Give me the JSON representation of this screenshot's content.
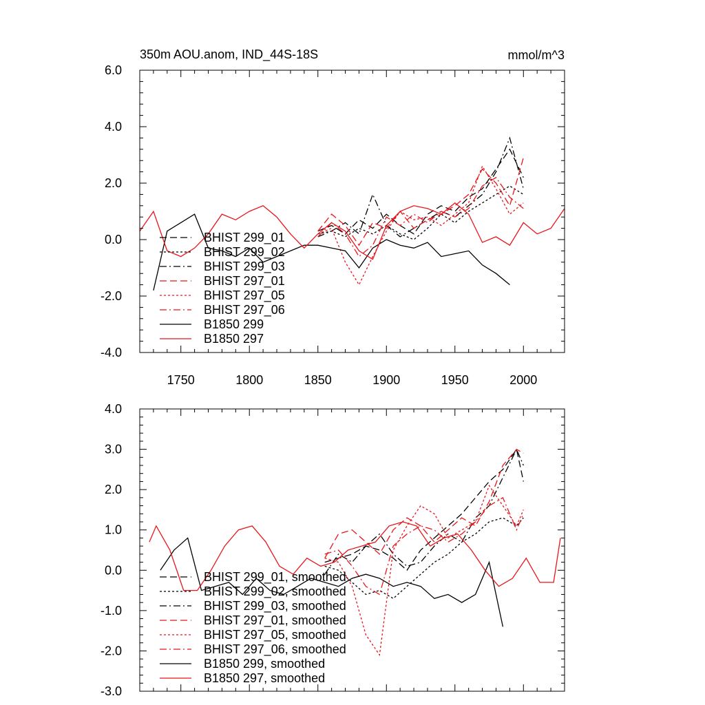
{
  "chart_data": [
    {
      "type": "line",
      "title": "350m AOU.anom, IND_44S-18S",
      "units": "mmol/m^3",
      "xlim": [
        1720,
        2030
      ],
      "ylim": [
        -4,
        6
      ],
      "xticks": [
        1750,
        1800,
        1850,
        1900,
        1950,
        2000
      ],
      "xtick_labels": [
        "1750",
        "1800",
        "1850",
        "1900",
        "1950",
        "2000"
      ],
      "yticks": [
        -4,
        -2,
        0,
        2,
        4,
        6
      ],
      "ytick_labels": [
        "-4.0",
        "-2.0",
        "0.0",
        "2.0",
        "4.0",
        "6.0"
      ],
      "legend": [
        "BHIST 299_01",
        "BHIST 299_02",
        "BHIST 299_03",
        "BHIST 297_01",
        "BHIST 297_05",
        "BHIST 297_06",
        "B1850 299",
        "B1850 297"
      ],
      "series": [
        {
          "name": "BHIST 299_01",
          "color": "#000000",
          "dash": "10,5",
          "x": [
            1850,
            1860,
            1870,
            1880,
            1890,
            1900,
            1910,
            1920,
            1930,
            1940,
            1950,
            1960,
            1970,
            1980,
            1990,
            2000
          ],
          "values": [
            0.3,
            0.5,
            0.2,
            0.7,
            0.4,
            0.9,
            0.5,
            0.2,
            0.9,
            1.2,
            1.0,
            1.5,
            1.8,
            2.5,
            3.2,
            2.2
          ]
        },
        {
          "name": "BHIST 299_02",
          "color": "#000000",
          "dash": "3,3",
          "x": [
            1850,
            1860,
            1870,
            1880,
            1890,
            1900,
            1910,
            1920,
            1930,
            1940,
            1950,
            1960,
            1970,
            1980,
            1990,
            2000
          ],
          "values": [
            0.2,
            0.3,
            0.1,
            0.4,
            0.2,
            0.5,
            0.2,
            0.0,
            0.4,
            0.9,
            0.6,
            1.0,
            1.3,
            1.6,
            1.9,
            1.6
          ]
        },
        {
          "name": "BHIST 299_03",
          "color": "#000000",
          "dash": "10,4,2,4",
          "x": [
            1850,
            1860,
            1870,
            1880,
            1890,
            1900,
            1910,
            1920,
            1930,
            1940,
            1950,
            1960,
            1970,
            1980,
            1990,
            2000
          ],
          "values": [
            0.1,
            0.3,
            0.6,
            0.2,
            1.6,
            0.5,
            0.1,
            0.4,
            0.7,
            1.0,
            0.8,
            1.2,
            1.6,
            2.4,
            3.6,
            1.8
          ]
        },
        {
          "name": "BHIST 297_01",
          "color": "#e8141a",
          "dash": "10,5",
          "x": [
            1850,
            1860,
            1870,
            1880,
            1890,
            1900,
            1910,
            1920,
            1930,
            1940,
            1950,
            1960,
            1970,
            1980,
            1990,
            2000
          ],
          "values": [
            0.3,
            0.9,
            0.5,
            -0.2,
            0.6,
            0.4,
            1.0,
            0.4,
            0.7,
            0.9,
            1.2,
            1.6,
            2.5,
            2.0,
            1.2,
            2.9
          ]
        },
        {
          "name": "BHIST 297_05",
          "color": "#e8141a",
          "dash": "3,3",
          "x": [
            1850,
            1860,
            1870,
            1880,
            1890,
            1900,
            1910,
            1920,
            1930,
            1940,
            1950,
            1960,
            1970,
            1980,
            1990,
            2000
          ],
          "values": [
            0.2,
            0.4,
            -0.8,
            -1.6,
            -0.6,
            0.3,
            1.0,
            0.7,
            0.8,
            0.5,
            0.9,
            1.3,
            2.6,
            1.8,
            0.9,
            1.3
          ]
        },
        {
          "name": "BHIST 297_06",
          "color": "#e8141a",
          "dash": "10,4,2,4",
          "x": [
            1850,
            1860,
            1870,
            1880,
            1890,
            1900,
            1910,
            1920,
            1930,
            1940,
            1950,
            1960,
            1970,
            1980,
            1990,
            2000
          ],
          "values": [
            0.1,
            0.6,
            0.2,
            -0.6,
            -0.2,
            0.8,
            0.5,
            0.9,
            0.6,
            1.0,
            0.8,
            1.1,
            1.9,
            2.2,
            1.5,
            1.1
          ]
        },
        {
          "name": "B1850 299",
          "color": "#000000",
          "dash": "",
          "x": [
            1730,
            1740,
            1750,
            1760,
            1770,
            1780,
            1790,
            1800,
            1810,
            1820,
            1830,
            1840,
            1850,
            1860,
            1870,
            1880,
            1890,
            1900,
            1910,
            1920,
            1930,
            1940,
            1950,
            1960,
            1970,
            1980,
            1990
          ],
          "values": [
            -1.8,
            0.3,
            0.6,
            0.9,
            -0.3,
            -0.4,
            -0.6,
            -0.3,
            -0.8,
            -0.6,
            -0.4,
            -0.2,
            -0.2,
            -0.3,
            -0.4,
            -1.0,
            -0.3,
            0.0,
            -0.2,
            -0.3,
            -0.1,
            -0.6,
            -0.5,
            -0.4,
            -0.9,
            -1.2,
            -1.6
          ]
        },
        {
          "name": "B1850 297",
          "color": "#e8141a",
          "dash": "",
          "x": [
            1720,
            1730,
            1740,
            1750,
            1760,
            1770,
            1780,
            1790,
            1800,
            1810,
            1820,
            1830,
            1840,
            1850,
            1860,
            1870,
            1880,
            1890,
            1900,
            1910,
            1920,
            1930,
            1940,
            1950,
            1960,
            1970,
            1980,
            1990,
            2000,
            2010,
            2020,
            2030
          ],
          "values": [
            0.3,
            1.0,
            -0.4,
            -0.6,
            -0.3,
            0.2,
            0.9,
            0.7,
            1.0,
            1.2,
            0.8,
            0.2,
            -0.3,
            0.2,
            0.6,
            0.3,
            -0.4,
            -0.7,
            0.5,
            1.0,
            1.2,
            1.1,
            0.9,
            1.3,
            0.9,
            -0.1,
            0.1,
            -0.2,
            0.6,
            0.2,
            0.4,
            1.1
          ]
        }
      ]
    },
    {
      "type": "line",
      "xlim": [
        1720,
        2030
      ],
      "ylim": [
        -3,
        4
      ],
      "xticks": [
        1750,
        1800,
        1850,
        1900,
        1950,
        2000
      ],
      "yticks": [
        -3,
        -2,
        -1,
        0,
        1,
        2,
        3,
        4
      ],
      "ytick_labels": [
        "-3.0",
        "-2.0",
        "-1.0",
        "0.0",
        "1.0",
        "2.0",
        "3.0",
        "4.0"
      ],
      "legend": [
        "BHIST 299_01, smoothed",
        "BHIST 299_02, smoothed",
        "BHIST 299_03, smoothed",
        "BHIST 297_01, smoothed",
        "BHIST 297_05, smoothed",
        "BHIST 297_06, smoothed",
        "B1850 299, smoothed",
        "B1850 297, smoothed"
      ],
      "series": [
        {
          "name": "BHIST 299_01, smoothed",
          "color": "#000000",
          "dash": "10,5",
          "x": [
            1855,
            1865,
            1875,
            1885,
            1895,
            1905,
            1915,
            1925,
            1935,
            1945,
            1955,
            1965,
            1975,
            1985,
            1995,
            2000
          ],
          "values": [
            0.2,
            0.3,
            0.4,
            0.6,
            0.5,
            0.3,
            0.0,
            0.5,
            0.8,
            1.1,
            1.4,
            1.8,
            2.2,
            2.5,
            3.0,
            2.2
          ]
        },
        {
          "name": "BHIST 299_02, smoothed",
          "color": "#000000",
          "dash": "3,3",
          "x": [
            1855,
            1865,
            1875,
            1885,
            1895,
            1905,
            1915,
            1925,
            1935,
            1945,
            1955,
            1965,
            1975,
            1985,
            1995,
            2000
          ],
          "values": [
            0.1,
            0.0,
            -0.3,
            -0.6,
            -0.5,
            -0.7,
            -0.4,
            -0.1,
            0.2,
            0.4,
            0.7,
            0.9,
            1.2,
            1.3,
            1.1,
            1.3
          ]
        },
        {
          "name": "BHIST 299_03, smoothed",
          "color": "#000000",
          "dash": "10,4,2,4",
          "x": [
            1855,
            1865,
            1875,
            1885,
            1895,
            1905,
            1915,
            1925,
            1935,
            1945,
            1955,
            1965,
            1975,
            1985,
            1995,
            2000
          ],
          "values": [
            -0.1,
            0.4,
            0.2,
            0.6,
            0.9,
            0.4,
            0.1,
            0.2,
            0.6,
            0.9,
            0.7,
            1.3,
            1.6,
            2.3,
            3.0,
            2.6
          ]
        },
        {
          "name": "BHIST 297_01, smoothed",
          "color": "#e8141a",
          "dash": "10,5",
          "x": [
            1855,
            1865,
            1875,
            1885,
            1895,
            1905,
            1915,
            1925,
            1935,
            1945,
            1955,
            1965,
            1975,
            1985,
            1995,
            2000
          ],
          "values": [
            0.3,
            0.9,
            1.0,
            0.7,
            0.4,
            1.0,
            1.3,
            1.1,
            0.7,
            1.0,
            1.3,
            1.1,
            1.7,
            2.6,
            3.0,
            2.9
          ]
        },
        {
          "name": "BHIST 297_05, smoothed",
          "color": "#e8141a",
          "dash": "3,3",
          "x": [
            1855,
            1865,
            1875,
            1885,
            1895,
            1905,
            1915,
            1925,
            1935,
            1945,
            1955,
            1965,
            1975,
            1985,
            1995,
            2000
          ],
          "values": [
            0.3,
            0.2,
            -0.4,
            -1.6,
            -2.1,
            0.5,
            1.1,
            1.6,
            1.4,
            0.8,
            1.0,
            1.2,
            2.1,
            1.6,
            1.1,
            1.5
          ]
        },
        {
          "name": "BHIST 297_06, smoothed",
          "color": "#e8141a",
          "dash": "10,4,2,4",
          "x": [
            1855,
            1865,
            1875,
            1885,
            1895,
            1905,
            1915,
            1925,
            1935,
            1945,
            1955,
            1965,
            1975,
            1985,
            1995,
            2000
          ],
          "values": [
            0.4,
            0.5,
            0.1,
            -0.4,
            -0.6,
            0.6,
            0.9,
            1.1,
            1.0,
            0.7,
            0.9,
            1.2,
            1.6,
            1.8,
            1.0,
            1.4
          ]
        },
        {
          "name": "B1850 299, smoothed",
          "color": "#000000",
          "dash": "",
          "x": [
            1735,
            1745,
            1755,
            1765,
            1775,
            1785,
            1795,
            1805,
            1815,
            1825,
            1835,
            1845,
            1855,
            1865,
            1875,
            1885,
            1895,
            1905,
            1915,
            1925,
            1935,
            1945,
            1955,
            1965,
            1975,
            1985
          ],
          "values": [
            0.0,
            0.5,
            0.8,
            -0.5,
            -0.4,
            -0.3,
            -0.6,
            -0.2,
            -0.5,
            -0.6,
            -0.4,
            -0.2,
            -0.3,
            -0.4,
            -0.2,
            -0.1,
            -0.2,
            -0.4,
            -0.3,
            -0.4,
            -0.7,
            -0.6,
            -0.8,
            -0.6,
            0.2,
            -1.4
          ]
        },
        {
          "name": "B1850 297, smoothed",
          "color": "#e8141a",
          "dash": "",
          "x": [
            1727,
            1732,
            1742,
            1752,
            1762,
            1772,
            1782,
            1792,
            1802,
            1812,
            1822,
            1832,
            1842,
            1852,
            1862,
            1872,
            1882,
            1892,
            1902,
            1912,
            1922,
            1932,
            1942,
            1952,
            1962,
            1972,
            1982,
            1992,
            2002,
            2012,
            2022,
            2027
          ],
          "values": [
            0.7,
            1.1,
            0.5,
            -0.5,
            -0.5,
            0.0,
            0.6,
            1.0,
            1.1,
            0.7,
            0.1,
            -0.1,
            0.3,
            0.1,
            0.2,
            0.5,
            0.6,
            0.7,
            1.1,
            1.2,
            1.1,
            0.6,
            0.8,
            0.9,
            0.5,
            0.0,
            -0.4,
            -0.2,
            0.3,
            -0.3,
            -0.3,
            0.8
          ]
        }
      ]
    }
  ]
}
